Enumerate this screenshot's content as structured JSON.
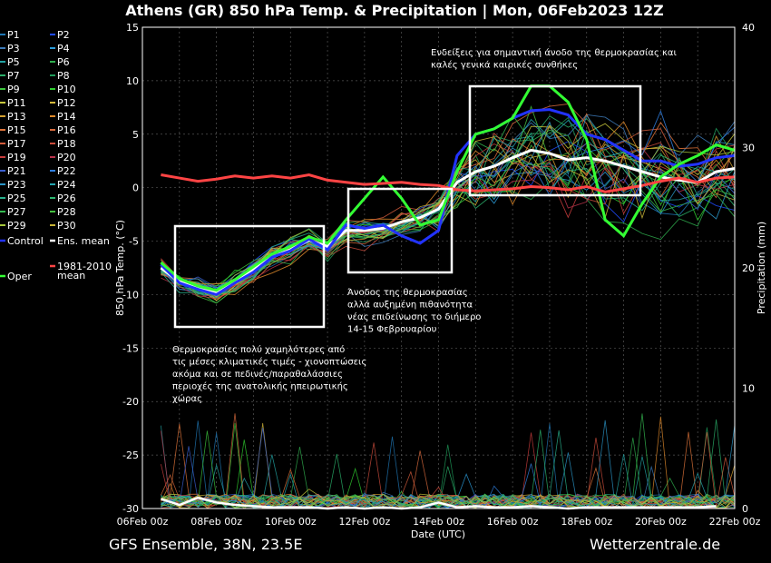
{
  "chart_data": {
    "type": "line",
    "title": "Athens  (GR)  850 hPa Temp. & Precipitation | Mon, 06Feb2023 12Z",
    "ylabel": "850 hPa Temp. (°C)",
    "y2label": "Precipitation (mm)",
    "xlabel": "Date (UTC)",
    "ylim": [
      -30,
      15
    ],
    "y2lim": [
      0,
      40
    ],
    "yticks": [
      15,
      10,
      5,
      0,
      -5,
      -10,
      -15,
      -20,
      -25,
      -30
    ],
    "y2ticks": [
      40,
      30,
      20,
      10,
      0
    ],
    "xlim_days": [
      0,
      16
    ],
    "xticks": [
      "06Feb 00z",
      "08Feb 00z",
      "10Feb 00z",
      "12Feb 00z",
      "14Feb 00z",
      "16Feb 00z",
      "18Feb 00z",
      "20Feb 00z",
      "22Feb 00z"
    ],
    "grid": true,
    "legend_position": "left-outside",
    "legend": [
      {
        "label": "P1",
        "color": "#1f77b4"
      },
      {
        "label": "P2",
        "color": "#1f4bff"
      },
      {
        "label": "P3",
        "color": "#3d7ab8"
      },
      {
        "label": "P4",
        "color": "#2a9bd9"
      },
      {
        "label": "P5",
        "color": "#22a3a3"
      },
      {
        "label": "P6",
        "color": "#2fae4e"
      },
      {
        "label": "P7",
        "color": "#2ab06a"
      },
      {
        "label": "P8",
        "color": "#1e9c5a"
      },
      {
        "label": "P9",
        "color": "#3cc43c"
      },
      {
        "label": "P10",
        "color": "#2ecc2e"
      },
      {
        "label": "P11",
        "color": "#c8c83c"
      },
      {
        "label": "P12",
        "color": "#d4b83a"
      },
      {
        "label": "P13",
        "color": "#d4a030"
      },
      {
        "label": "P14",
        "color": "#e08a2a"
      },
      {
        "label": "P15",
        "color": "#e0743a"
      },
      {
        "label": "P16",
        "color": "#d96a3c"
      },
      {
        "label": "P17",
        "color": "#d45c3c"
      },
      {
        "label": "P18",
        "color": "#cc4c3c"
      },
      {
        "label": "P19",
        "color": "#c83c3c"
      },
      {
        "label": "P20",
        "color": "#b8324a"
      },
      {
        "label": "P21",
        "color": "#3a5fd0"
      },
      {
        "label": "P22",
        "color": "#2f7fe0"
      },
      {
        "label": "P23",
        "color": "#2a96c8"
      },
      {
        "label": "P24",
        "color": "#24a6b0"
      },
      {
        "label": "P25",
        "color": "#28b08c"
      },
      {
        "label": "P26",
        "color": "#2cb46e"
      },
      {
        "label": "P27",
        "color": "#34ba50"
      },
      {
        "label": "P28",
        "color": "#44c040"
      },
      {
        "label": "P29",
        "color": "#a6c83c"
      },
      {
        "label": "P30",
        "color": "#c8b436"
      },
      {
        "label": "Control",
        "color": "#2233ff"
      },
      {
        "label": "Ens. mean",
        "color": "#ffffff"
      },
      {
        "label": "Oper",
        "color": "#33ff33"
      },
      {
        "label": "1981-2010\nmean",
        "color": "#ff4444"
      }
    ],
    "series": [
      {
        "name": "Ens. mean",
        "color": "#ffffff",
        "x": [
          0.5,
          1,
          1.5,
          2,
          2.5,
          3,
          3.5,
          4,
          4.5,
          5,
          5.5,
          6,
          6.5,
          7,
          7.5,
          8,
          8.5,
          9,
          9.5,
          10,
          10.5,
          11,
          11.5,
          12,
          12.5,
          13,
          13.5,
          14,
          14.5,
          15,
          15.5,
          16
        ],
        "y": [
          -7.5,
          -8.8,
          -9.3,
          -9.8,
          -8.8,
          -7.6,
          -6.5,
          -5.8,
          -4.9,
          -5.5,
          -4.0,
          -4.0,
          -3.8,
          -3.2,
          -2.8,
          -2.0,
          0.5,
          1.5,
          2.0,
          2.8,
          3.5,
          3.2,
          2.6,
          2.8,
          2.5,
          2.0,
          1.5,
          1.0,
          0.7,
          0.5,
          1.5,
          1.8
        ]
      },
      {
        "name": "Control",
        "color": "#2233ff",
        "x": [
          0.5,
          1,
          1.5,
          2,
          2.5,
          3,
          3.5,
          4,
          4.5,
          5,
          5.5,
          6,
          6.5,
          7,
          7.5,
          8,
          8.5,
          9,
          9.5,
          10,
          10.5,
          11,
          11.5,
          12,
          12.5,
          13,
          13.5,
          14,
          14.5,
          15,
          15.5,
          16
        ],
        "y": [
          -7.2,
          -8.9,
          -9.5,
          -10.0,
          -8.9,
          -7.9,
          -6.5,
          -5.9,
          -4.8,
          -5.8,
          -3.5,
          -3.8,
          -3.5,
          -4.5,
          -5.2,
          -4.0,
          3.0,
          5.0,
          5.5,
          6.5,
          7.2,
          7.3,
          6.8,
          5.0,
          4.5,
          3.5,
          2.5,
          2.5,
          2.0,
          2.2,
          2.8,
          3.0
        ]
      },
      {
        "name": "Oper",
        "color": "#33ff33",
        "x": [
          0.5,
          1,
          1.5,
          2,
          2.5,
          3,
          3.5,
          4,
          4.5,
          5,
          5.5,
          6,
          6.5,
          7,
          7.5,
          8,
          8.5,
          9,
          9.5,
          10,
          10.5,
          11,
          11.5,
          12,
          12.5,
          13,
          13.5,
          14,
          14.5,
          15,
          15.5,
          16
        ],
        "y": [
          -7.0,
          -8.5,
          -9.2,
          -9.6,
          -8.6,
          -7.4,
          -6.2,
          -5.5,
          -4.6,
          -5.2,
          -3.0,
          -1.0,
          1.0,
          -1.0,
          -3.5,
          -3.0,
          1.5,
          5.0,
          5.5,
          6.5,
          9.5,
          9.5,
          8.0,
          4.5,
          -3.0,
          -4.5,
          -1.5,
          1.0,
          2.2,
          3.0,
          4.0,
          3.5
        ]
      },
      {
        "name": "1981-2010\nmean",
        "color": "#ff4444",
        "x": [
          0.5,
          1,
          1.5,
          2,
          2.5,
          3,
          3.5,
          4,
          4.5,
          5,
          5.5,
          6,
          6.5,
          7,
          7.5,
          8,
          8.5,
          9,
          9.5,
          10,
          10.5,
          11,
          11.5,
          12,
          12.5,
          13,
          13.5,
          14,
          14.5,
          15,
          15.5,
          16
        ],
        "y": [
          1.2,
          0.9,
          0.6,
          0.8,
          1.1,
          0.9,
          1.1,
          0.9,
          1.2,
          0.7,
          0.5,
          0.3,
          0.4,
          0.5,
          0.3,
          0.2,
          -0.2,
          -0.3,
          -0.2,
          -0.1,
          0.1,
          0.0,
          -0.2,
          0.1,
          -0.4,
          -0.1,
          0.2,
          0.6,
          0.9,
          0.5,
          0.9,
          1.0
        ]
      }
    ],
    "precip_mean_mm": [
      0.8,
      0.3,
      0.9,
      0.5,
      0.3,
      0.2,
      0.1,
      0.1,
      0.1,
      0.0,
      0.1,
      0.0,
      0.1,
      0.0,
      0.1,
      0.5,
      0.1,
      0.2,
      0.1,
      0.1,
      0.2,
      0.1,
      0.0,
      0.1,
      0.1,
      0.1,
      0.1,
      0.1,
      0.1,
      0.1,
      0.2
    ]
  },
  "annotations": [
    {
      "lines": [
        "Ενδείξεις για σημαντική άνοδο της θερμοκρασίας και",
        "καλές γενικά καιρικές συνθήκες"
      ]
    },
    {
      "lines": [
        "Άνοδος της θερμοκρασίας",
        "αλλά αυξημένη πιθανότητα",
        "νέας επιδείνωσης το διήμερο",
        "14-15 Φεβρουαρίου"
      ]
    },
    {
      "lines": [
        "Θερμοκρασίες πολύ χαμηλότερες από",
        "τις μέσες κλιματικές τιμές - χιονοπτώσεις",
        "ακόμα και σε πεδινές/παραθαλάσσιες",
        "περιοχές της ανατολικής ηπειρωτικής",
        "χώρας"
      ]
    }
  ],
  "footer": {
    "left": "GFS Ensemble, 38N, 23.5E",
    "right": "Wetterzentrale.de"
  }
}
